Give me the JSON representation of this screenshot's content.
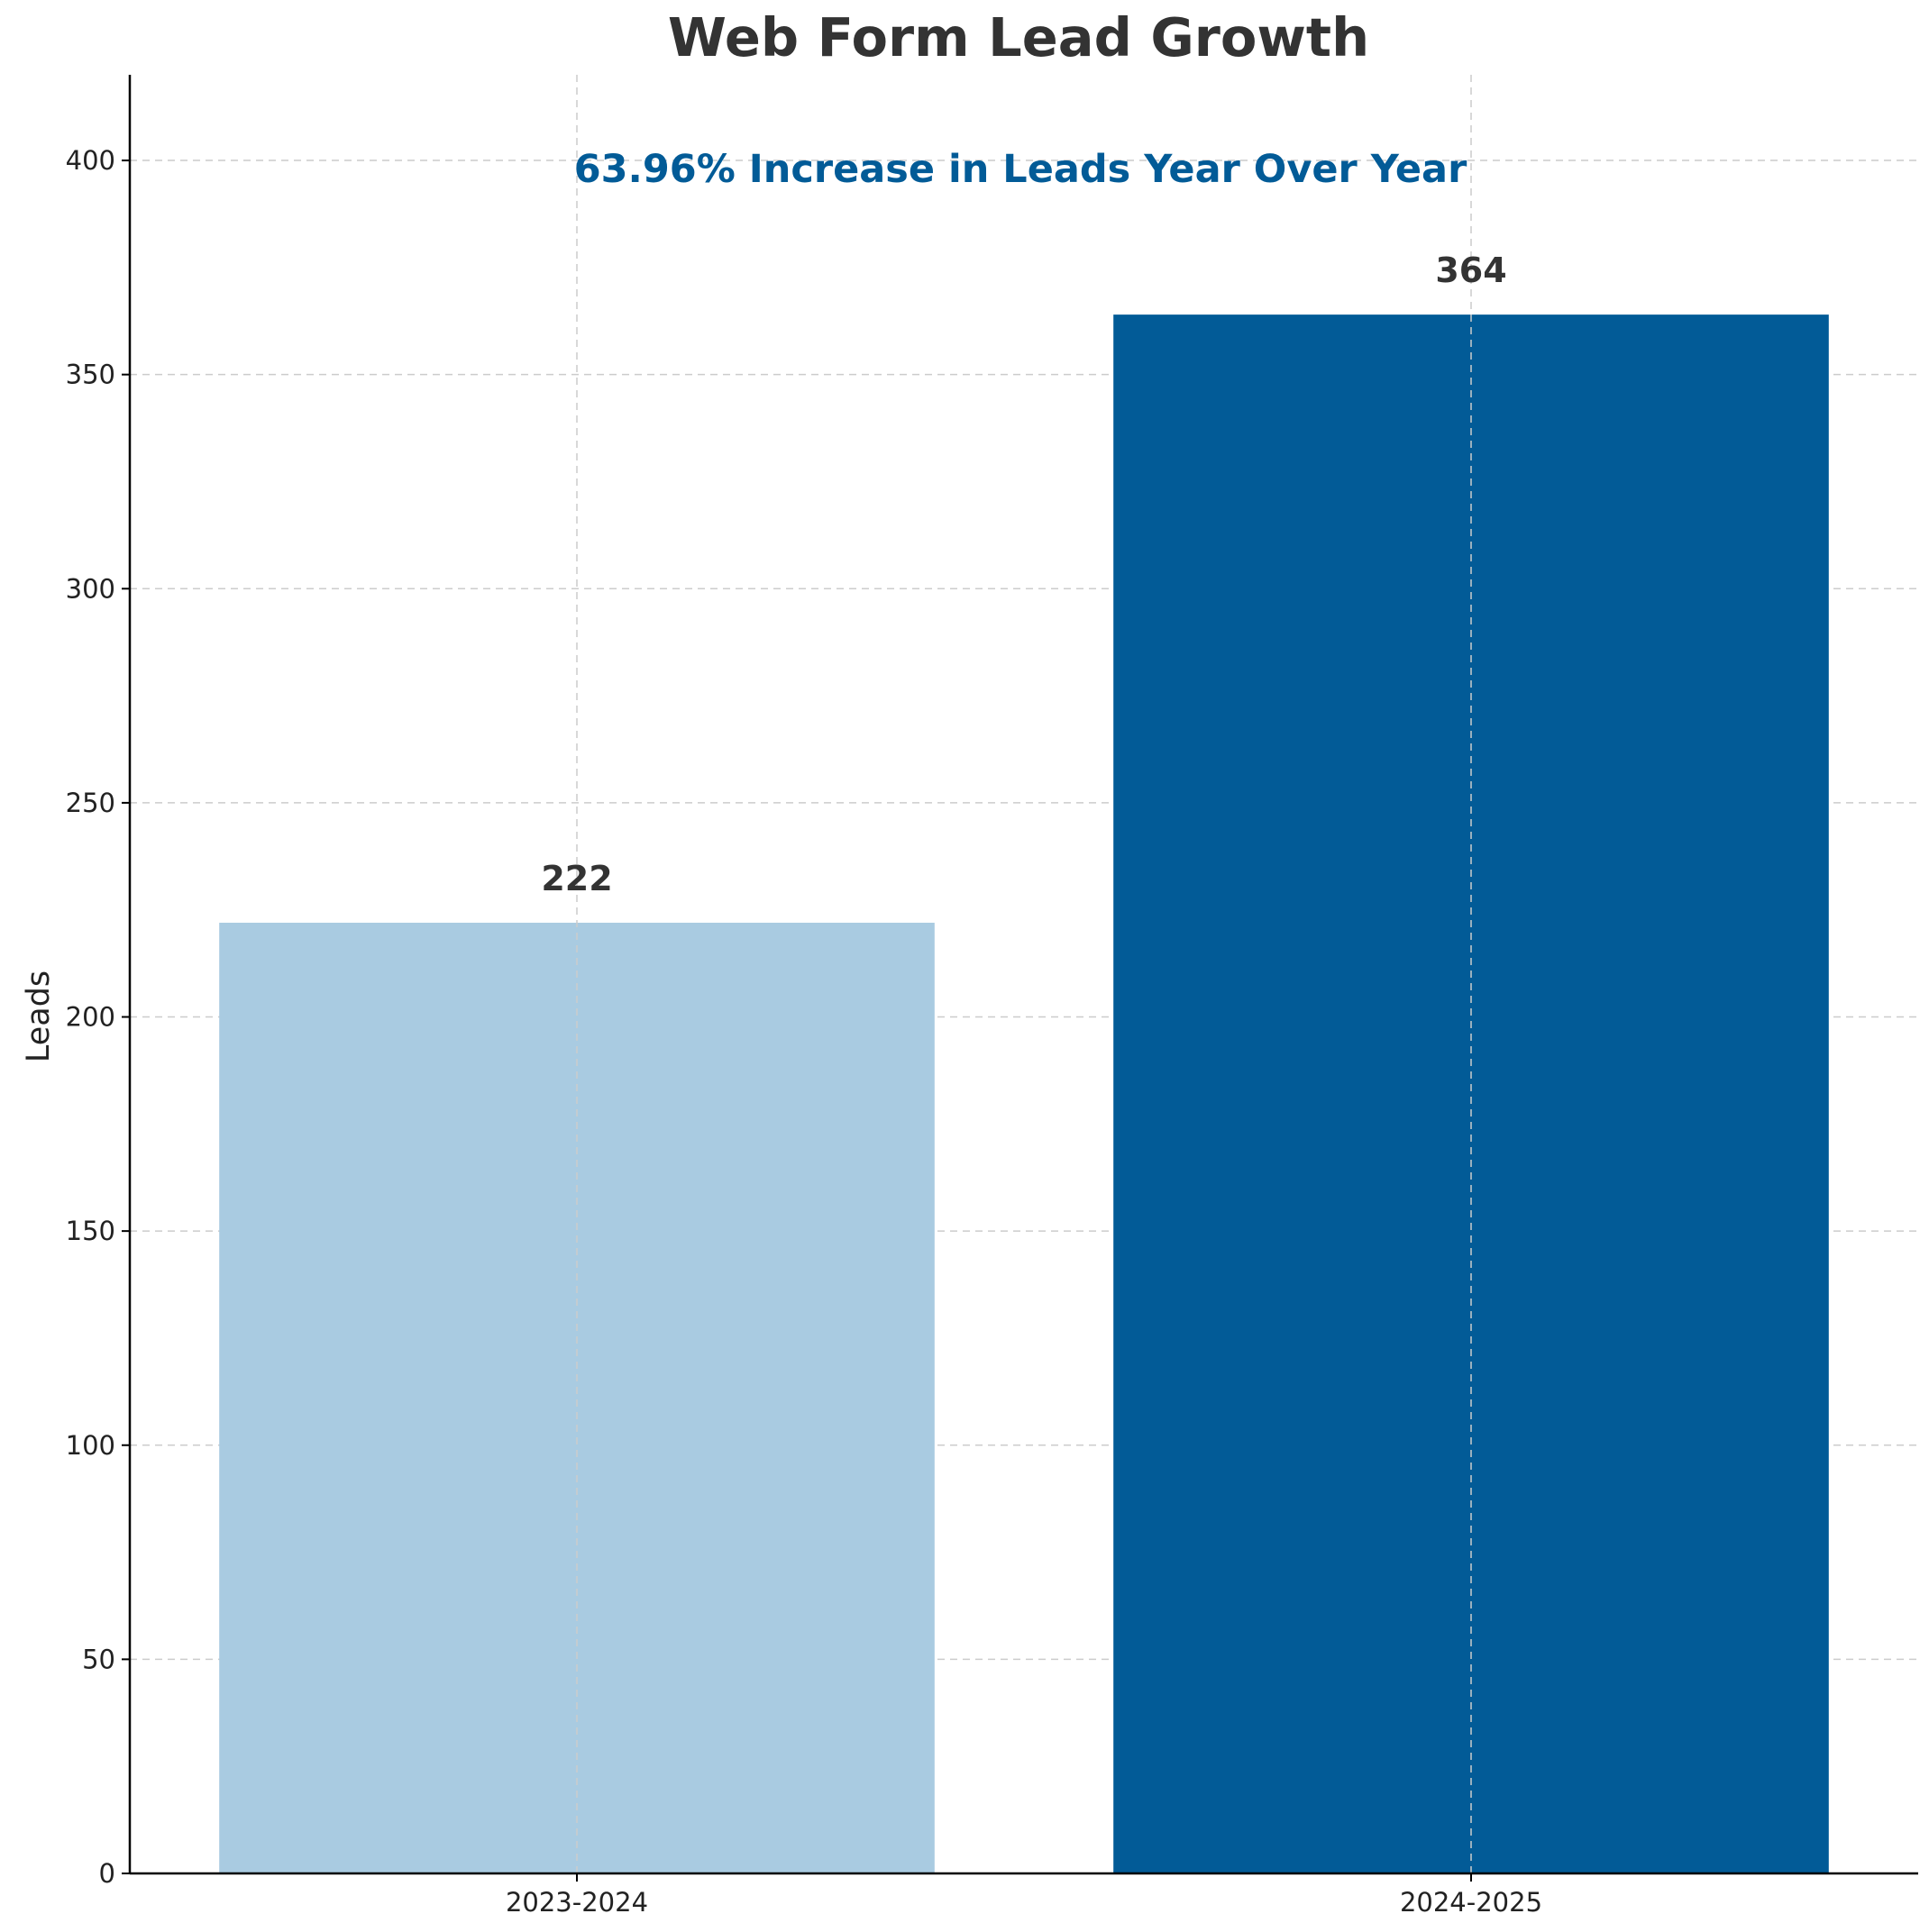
{
  "chart_data": {
    "type": "bar",
    "title": "Web Form Lead Growth",
    "xlabel": "",
    "ylabel": "Leads",
    "categories": [
      "2023-2024",
      "2024-2025"
    ],
    "values": [
      222,
      364
    ],
    "data_labels": [
      "222",
      "364"
    ],
    "bar_colors": [
      "#a9cbe1",
      "#025b97"
    ],
    "annotation": "63.96% Increase in Leads Year Over Year",
    "annotation_color": "#025b97",
    "ylim": [
      0,
      420
    ],
    "yticks": [
      0,
      50,
      100,
      150,
      200,
      250,
      300,
      350,
      400
    ],
    "ytick_labels": [
      "0",
      "50",
      "100",
      "150",
      "200",
      "250",
      "300",
      "350",
      "400"
    ],
    "grid": true,
    "legend": "none"
  }
}
